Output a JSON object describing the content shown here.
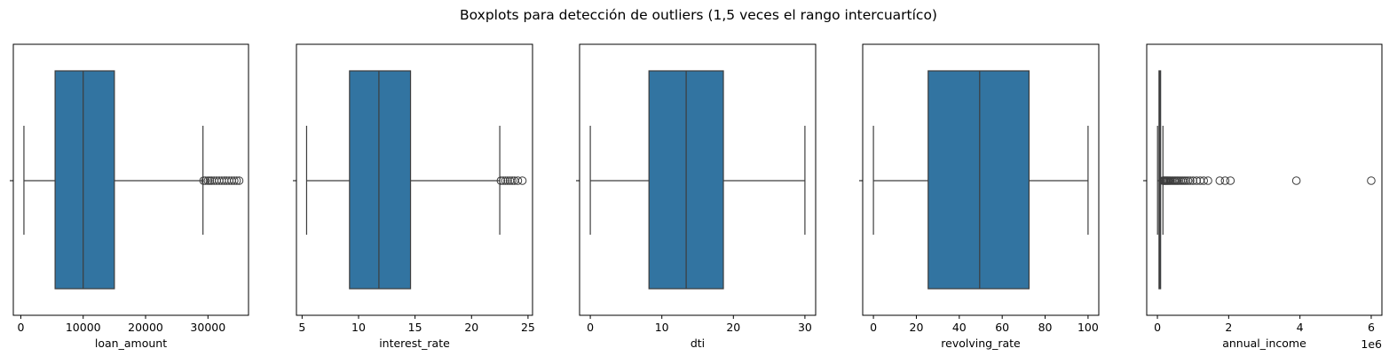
{
  "figure": {
    "title": "Boxplots para detección de outliers (1,5 veces el rango intercuartíco)"
  },
  "colors": {
    "box_fill": "#3274a1",
    "line": "#3d3d3d",
    "axes": "#000000",
    "background": "#ffffff"
  },
  "chart_data": [
    {
      "type": "box",
      "orientation": "horizontal",
      "xlabel": "loan_amount",
      "xlim": [
        -1200,
        36500
      ],
      "xticks": [
        0,
        10000,
        20000,
        30000
      ],
      "xtick_labels": [
        "0",
        "10000",
        "20000",
        "30000"
      ],
      "offset_label": "",
      "stats": {
        "whisker_low": 500,
        "q1": 5500,
        "median": 10000,
        "q3": 15000,
        "whisker_high": 29200
      },
      "outliers": [
        29300,
        29600,
        30000,
        30300,
        30600,
        31000,
        31400,
        31800,
        32200,
        32600,
        33000,
        33400,
        33800,
        34200,
        34600,
        35000
      ]
    },
    {
      "type": "box",
      "orientation": "horizontal",
      "xlabel": "interest_rate",
      "xlim": [
        4.5,
        25.4
      ],
      "xticks": [
        5,
        10,
        15,
        20,
        25
      ],
      "xtick_labels": [
        "5",
        "10",
        "15",
        "20",
        "25"
      ],
      "offset_label": "",
      "stats": {
        "whisker_low": 5.4,
        "q1": 9.2,
        "median": 11.8,
        "q3": 14.6,
        "whisker_high": 22.5
      },
      "outliers": [
        22.6,
        22.8,
        23.0,
        23.2,
        23.4,
        23.6,
        23.8,
        24.1,
        24.5
      ]
    },
    {
      "type": "box",
      "orientation": "horizontal",
      "xlabel": "dti",
      "xlim": [
        -1.5,
        31.5
      ],
      "xticks": [
        0,
        10,
        20,
        30
      ],
      "xtick_labels": [
        "0",
        "10",
        "20",
        "30"
      ],
      "offset_label": "",
      "stats": {
        "whisker_low": 0,
        "q1": 8.2,
        "median": 13.4,
        "q3": 18.6,
        "whisker_high": 30
      },
      "outliers": []
    },
    {
      "type": "box",
      "orientation": "horizontal",
      "xlabel": "revolving_rate",
      "xlim": [
        -5,
        105
      ],
      "xticks": [
        0,
        20,
        40,
        60,
        80,
        100
      ],
      "xtick_labels": [
        "0",
        "20",
        "40",
        "60",
        "80",
        "100"
      ],
      "offset_label": "",
      "stats": {
        "whisker_low": 0,
        "q1": 25.5,
        "median": 49.5,
        "q3": 72.5,
        "whisker_high": 100
      },
      "outliers": []
    },
    {
      "type": "box",
      "orientation": "horizontal",
      "xlabel": "annual_income",
      "xlim": [
        -300000,
        6300000
      ],
      "xticks": [
        0,
        2000000,
        4000000,
        6000000
      ],
      "xtick_labels": [
        "0",
        "2",
        "4",
        "6"
      ],
      "offset_label": "1e6",
      "stats": {
        "whisker_low": 4000,
        "q1": 45000,
        "median": 62000,
        "q3": 90000,
        "whisker_high": 155000
      },
      "outliers": [
        160000,
        180000,
        200000,
        225000,
        250000,
        275000,
        300000,
        330000,
        360000,
        400000,
        440000,
        480000,
        520000,
        560000,
        600000,
        650000,
        700000,
        750000,
        800000,
        860000,
        920000,
        1000000,
        1100000,
        1200000,
        1300000,
        1420000,
        1750000,
        1900000,
        2050000,
        3900000,
        6000000
      ]
    }
  ]
}
